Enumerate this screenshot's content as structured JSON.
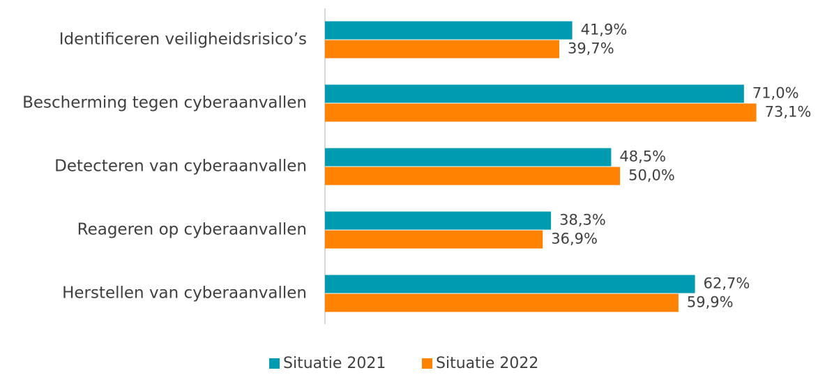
{
  "chart_data": {
    "type": "bar",
    "orientation": "horizontal",
    "categories": [
      "Identificeren veiligheidsrisico’s",
      "Bescherming tegen cyberaanvallen",
      "Detecteren van cyberaanvallen",
      "Reageren op cyberaanvallen",
      "Herstellen van cyberaanvallen"
    ],
    "series": [
      {
        "name": "Situatie 2021",
        "color": "#009bb0",
        "values": [
          41.9,
          71.0,
          48.5,
          38.3,
          62.7
        ],
        "value_labels": [
          "41,9%",
          "71,0%",
          "48,5%",
          "38,3%",
          "62,7%"
        ]
      },
      {
        "name": "Situatie 2022",
        "color": "#ff8200",
        "values": [
          39.7,
          73.1,
          50.0,
          36.9,
          59.9
        ],
        "value_labels": [
          "39,7%",
          "73,1%",
          "50,0%",
          "36,9%",
          "59,9%"
        ]
      }
    ],
    "xlim": [
      0,
      80
    ],
    "legend": "bottom"
  }
}
